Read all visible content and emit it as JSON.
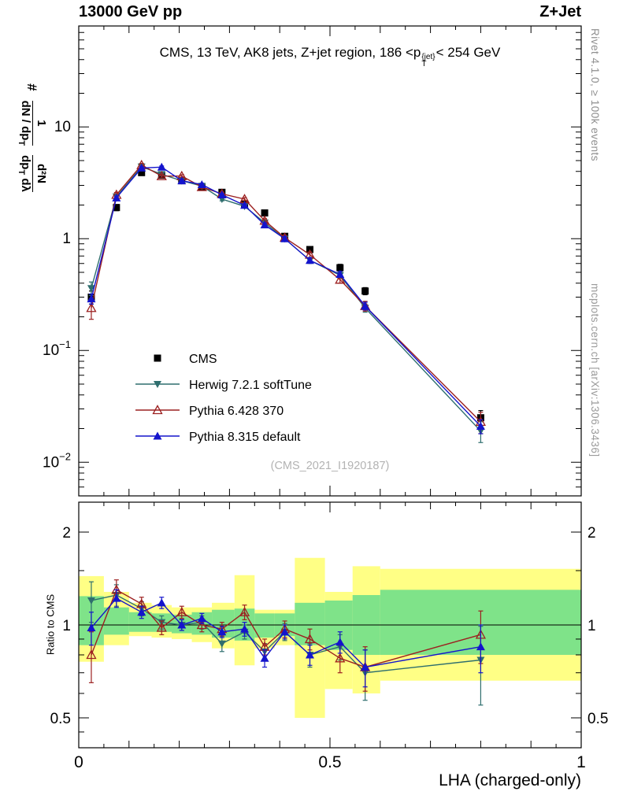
{
  "header": {
    "left": "13000 GeV pp",
    "right": "Z+Jet"
  },
  "title": {
    "pre": "CMS, 13 TeV, AK8 jets, Z+jet region, 186 <p",
    "sup": "{jet}",
    "sub": "T",
    "post": "< 254 GeV"
  },
  "ylabel": {
    "prefix": "#",
    "frac1": {
      "num": "1",
      "den_main": "dN / dp",
      "den_sub": "T"
    },
    "frac2": {
      "num": "d²N",
      "den_main": "dp",
      "den_sub": "T",
      "den_tail": " dλ"
    }
  },
  "ratio_label": "Ratio to CMS",
  "xlabel": "LHA (charged-only)",
  "watermark": "(CMS_2021_I1920187)",
  "right_margin": {
    "rivet": "Rivet 4.1.0, ≥ 100k events",
    "mcplots": "mcplots.cern.ch [arXiv:1306.3436]"
  },
  "chart_data": {
    "type": "line",
    "title": "CMS, 13 TeV, AK8 jets, Z+jet region, 186 <pT{jet}< 254 GeV",
    "xlabel": "LHA (charged-only)",
    "ylabel": "# 1/(dN/dpT) d²N/(dpT dλ)",
    "ratio_ylabel": "Ratio to CMS",
    "x": [
      0.025,
      0.075,
      0.125,
      0.165,
      0.205,
      0.245,
      0.285,
      0.33,
      0.37,
      0.41,
      0.46,
      0.52,
      0.57,
      0.8
    ],
    "series": [
      {
        "name": "CMS",
        "color": "#000000",
        "marker": "square",
        "values": [
          0.3,
          1.9,
          3.9,
          3.7,
          3.3,
          2.9,
          2.6,
          2.05,
          1.7,
          1.05,
          0.8,
          0.55,
          0.34,
          0.025
        ],
        "yerr": [
          0.04,
          0.12,
          0.22,
          0.2,
          0.18,
          0.15,
          0.13,
          0.1,
          0.09,
          0.06,
          0.05,
          0.04,
          0.025,
          0.004
        ]
      },
      {
        "name": "Herwig 7.2.1 softTune",
        "color": "#2e6e6e",
        "marker": "triangle-down",
        "values": [
          0.36,
          2.38,
          4.41,
          3.77,
          3.3,
          2.96,
          2.26,
          1.95,
          1.39,
          1.0,
          0.64,
          0.47,
          0.24,
          0.019
        ],
        "yerr": [
          0.05,
          0.1,
          0.14,
          0.12,
          0.1,
          0.09,
          0.08,
          0.07,
          0.06,
          0.05,
          0.04,
          0.03,
          0.02,
          0.004
        ],
        "ratio": [
          1.2,
          1.25,
          1.13,
          1.02,
          1.0,
          1.02,
          0.87,
          0.95,
          0.82,
          0.95,
          0.8,
          0.85,
          0.7,
          0.77
        ],
        "ratio_err": [
          0.18,
          0.1,
          0.06,
          0.05,
          0.04,
          0.05,
          0.05,
          0.05,
          0.05,
          0.06,
          0.07,
          0.08,
          0.13,
          0.22
        ]
      },
      {
        "name": "Pythia 6.428 370",
        "color": "#9c2020",
        "marker": "triangle-open",
        "values": [
          0.24,
          2.47,
          4.56,
          3.63,
          3.63,
          2.9,
          2.52,
          2.26,
          1.45,
          1.02,
          0.72,
          0.43,
          0.25,
          0.023
        ],
        "yerr": [
          0.05,
          0.12,
          0.15,
          0.12,
          0.11,
          0.1,
          0.08,
          0.07,
          0.06,
          0.05,
          0.04,
          0.03,
          0.025,
          0.005
        ],
        "ratio": [
          0.8,
          1.3,
          1.17,
          0.98,
          1.1,
          1.0,
          0.97,
          1.1,
          0.85,
          0.97,
          0.9,
          0.78,
          0.73,
          0.93
        ],
        "ratio_err": [
          0.15,
          0.1,
          0.06,
          0.05,
          0.05,
          0.05,
          0.05,
          0.06,
          0.05,
          0.06,
          0.07,
          0.08,
          0.12,
          0.18
        ]
      },
      {
        "name": "Pythia 8.315 default",
        "color": "#1414cc",
        "marker": "triangle-up",
        "values": [
          0.29,
          2.32,
          4.29,
          4.37,
          3.3,
          3.05,
          2.47,
          1.99,
          1.33,
          1.0,
          0.64,
          0.48,
          0.25,
          0.021
        ],
        "yerr": [
          0.03,
          0.08,
          0.12,
          0.1,
          0.09,
          0.08,
          0.07,
          0.06,
          0.05,
          0.04,
          0.035,
          0.03,
          0.02,
          0.003
        ],
        "ratio": [
          0.98,
          1.22,
          1.1,
          1.18,
          1.0,
          1.05,
          0.95,
          0.97,
          0.78,
          0.95,
          0.8,
          0.88,
          0.73,
          0.85
        ],
        "ratio_err": [
          0.12,
          0.08,
          0.05,
          0.05,
          0.04,
          0.04,
          0.04,
          0.05,
          0.05,
          0.05,
          0.06,
          0.07,
          0.1,
          0.15
        ]
      }
    ],
    "axes": {
      "xlim": [
        0,
        1
      ],
      "x_ticks": [
        {
          "v": 0,
          "label": "0"
        },
        {
          "v": 0.5,
          "label": "0.5"
        },
        {
          "v": 1,
          "label": "1"
        }
      ],
      "y_log_lim": [
        0.005,
        80
      ],
      "y_ticks": [
        {
          "v": 10,
          "base": "10",
          "exp": ""
        },
        {
          "v": 1,
          "base": "1",
          "exp": ""
        },
        {
          "v": 0.1,
          "base": "10",
          "exp": "−1"
        },
        {
          "v": 0.01,
          "base": "10",
          "exp": "−2"
        }
      ],
      "ratio_lim": [
        0.4,
        2.5
      ],
      "ratio_ticks": [
        {
          "v": 2,
          "label": "2"
        },
        {
          "v": 1,
          "label": "1"
        },
        {
          "v": 0.5,
          "label": "0.5"
        }
      ],
      "ratio_minor_ticks": [
        0.45,
        0.6,
        0.7,
        0.8,
        0.9,
        1.5
      ],
      "grid": false,
      "legend_position": "center-left"
    },
    "bands": {
      "yellow_color": "#ffff85",
      "green_color": "#7fe389",
      "yellow": [
        [
          0.0,
          0.05,
          0.76,
          1.44
        ],
        [
          0.05,
          0.1,
          0.86,
          1.28
        ],
        [
          0.1,
          0.145,
          0.92,
          1.18
        ],
        [
          0.145,
          0.185,
          0.91,
          1.16
        ],
        [
          0.185,
          0.225,
          0.9,
          1.14
        ],
        [
          0.225,
          0.265,
          0.88,
          1.14
        ],
        [
          0.265,
          0.31,
          0.84,
          1.18
        ],
        [
          0.31,
          0.35,
          0.74,
          1.45
        ],
        [
          0.35,
          0.39,
          0.84,
          1.12
        ],
        [
          0.39,
          0.43,
          0.86,
          1.12
        ],
        [
          0.43,
          0.49,
          0.5,
          1.65
        ],
        [
          0.49,
          0.545,
          0.62,
          1.28
        ],
        [
          0.545,
          0.6,
          0.6,
          1.55
        ],
        [
          0.6,
          1.0,
          0.66,
          1.52
        ]
      ],
      "green": [
        [
          0.0,
          0.05,
          0.86,
          1.24
        ],
        [
          0.05,
          0.1,
          0.93,
          1.14
        ],
        [
          0.1,
          0.145,
          0.95,
          1.1
        ],
        [
          0.145,
          0.185,
          0.95,
          1.09
        ],
        [
          0.185,
          0.225,
          0.94,
          1.08
        ],
        [
          0.225,
          0.265,
          0.93,
          1.1
        ],
        [
          0.265,
          0.31,
          0.91,
          1.12
        ],
        [
          0.31,
          0.35,
          0.89,
          1.13
        ],
        [
          0.35,
          0.39,
          0.91,
          1.09
        ],
        [
          0.39,
          0.43,
          0.92,
          1.09
        ],
        [
          0.43,
          0.49,
          0.86,
          1.18
        ],
        [
          0.49,
          0.545,
          0.83,
          1.2
        ],
        [
          0.545,
          0.6,
          0.8,
          1.25
        ],
        [
          0.6,
          1.0,
          0.8,
          1.3
        ]
      ]
    }
  }
}
